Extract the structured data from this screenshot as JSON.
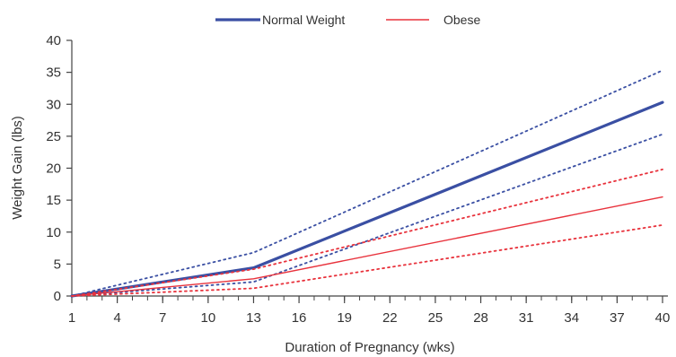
{
  "chart_data": {
    "type": "line",
    "xlabel": "Duration of Pregnancy (wks)",
    "ylabel": "Weight Gain (lbs)",
    "xlim": [
      1,
      40
    ],
    "ylim": [
      0,
      40
    ],
    "x_ticks": [
      1,
      4,
      7,
      10,
      13,
      16,
      19,
      22,
      25,
      28,
      31,
      34,
      37,
      40
    ],
    "y_ticks": [
      0,
      5,
      10,
      15,
      20,
      25,
      30,
      35,
      40
    ],
    "legend_position": "top-center",
    "series": [
      {
        "name": "Normal Weight",
        "color": "#3a4fa3",
        "style": "solid-thick",
        "points": [
          [
            1,
            0
          ],
          [
            13,
            4.4
          ],
          [
            40,
            30.3
          ]
        ]
      },
      {
        "color": "#3a4fa3",
        "style": "dotted",
        "points": [
          [
            1,
            0
          ],
          [
            13,
            6.8
          ],
          [
            40,
            35.3
          ]
        ]
      },
      {
        "color": "#3a4fa3",
        "style": "dotted",
        "points": [
          [
            1,
            0
          ],
          [
            13,
            2.2
          ],
          [
            40,
            25.3
          ]
        ]
      },
      {
        "name": "Obese",
        "color": "#e8323c",
        "style": "solid-thin",
        "points": [
          [
            1,
            0
          ],
          [
            13,
            2.7
          ],
          [
            40,
            15.5
          ]
        ]
      },
      {
        "color": "#e8323c",
        "style": "dotted",
        "points": [
          [
            1,
            0
          ],
          [
            13,
            4.2
          ],
          [
            40,
            19.8
          ]
        ]
      },
      {
        "color": "#e8323c",
        "style": "dotted",
        "points": [
          [
            1,
            0
          ],
          [
            13,
            1.2
          ],
          [
            40,
            11.1
          ]
        ]
      }
    ]
  }
}
